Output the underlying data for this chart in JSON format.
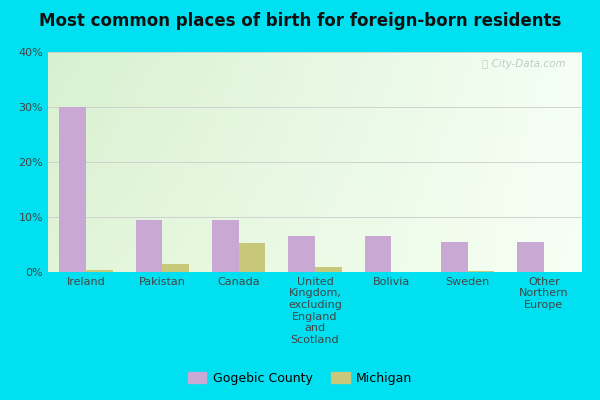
{
  "title": "Most common places of birth for foreign-born residents",
  "categories": [
    "Ireland",
    "Pakistan",
    "Canada",
    "United\nKingdom,\nexcluding\nEngland\nand\nScotland",
    "Bolivia",
    "Sweden",
    "Other\nNorthern\nEurope"
  ],
  "gogebic_values": [
    30,
    9.5,
    9.5,
    6.5,
    6.5,
    5.5,
    5.5
  ],
  "michigan_values": [
    0.3,
    1.5,
    5.2,
    1.0,
    0.0,
    0.2,
    0.0
  ],
  "gogebic_color": "#c9a8d4",
  "michigan_color": "#c8c87a",
  "ylim": [
    0,
    40
  ],
  "yticks": [
    0,
    10,
    20,
    30,
    40
  ],
  "ytick_labels": [
    "0%",
    "10%",
    "20%",
    "30%",
    "40%"
  ],
  "bar_width": 0.35,
  "legend_gogebic": "Gogebic County",
  "legend_michigan": "Michigan",
  "watermark": "ⓘ City-Data.com",
  "outer_bg": "#00e0f0",
  "gradient_top_left": "#e8f5e0",
  "gradient_bottom_right": "#f8fff0",
  "gradient_top_right": "#ffffff",
  "title_fontsize": 12,
  "tick_fontsize": 8,
  "legend_fontsize": 9
}
